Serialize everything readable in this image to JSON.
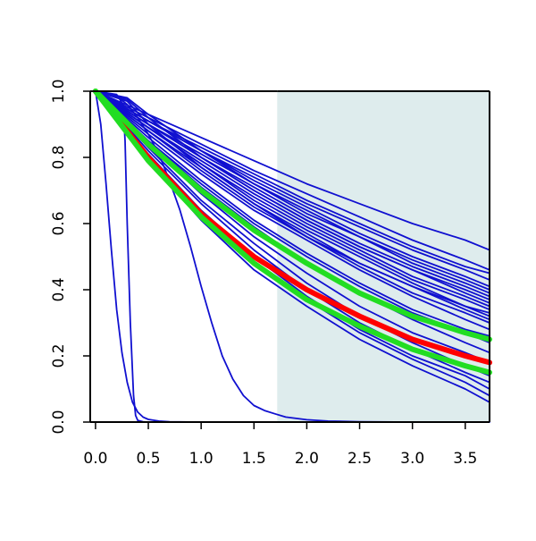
{
  "chart_data": {
    "type": "line",
    "title": "",
    "xlabel": "",
    "ylabel": "",
    "xlim": [
      -0.05,
      3.73
    ],
    "ylim": [
      0,
      1
    ],
    "x_ticks": [
      "0.0",
      "0.5",
      "1.0",
      "1.5",
      "2.0",
      "2.5",
      "3.0",
      "3.5"
    ],
    "y_ticks": [
      "0.0",
      "0.2",
      "0.4",
      "0.6",
      "0.8",
      "1.0"
    ],
    "grid": false,
    "shaded_region": {
      "x_from": 1.72,
      "x_to": 3.73,
      "color": "#deeced"
    },
    "colors": {
      "curves": "#1010d0",
      "highlight_red": "#ff0000",
      "highlight_green": "#22dd22",
      "shade": "#deeced"
    },
    "series": [
      {
        "color": "#1010d0",
        "x": [
          0,
          0.05,
          0.1,
          0.15,
          0.2,
          0.25,
          0.3,
          0.35,
          0.4,
          0.45,
          0.5,
          0.6,
          0.7,
          0.8,
          1.0
        ],
        "y": [
          1.0,
          0.9,
          0.72,
          0.52,
          0.34,
          0.21,
          0.12,
          0.06,
          0.03,
          0.015,
          0.008,
          0.003,
          0.001,
          0.0005,
          0.0
        ]
      },
      {
        "color": "#1010d0",
        "x": [
          0,
          0.2,
          0.26,
          0.28,
          0.3,
          0.33,
          0.36,
          0.38,
          0.4,
          0.45,
          0.5,
          0.7,
          1.0
        ],
        "y": [
          1.0,
          0.99,
          0.96,
          0.85,
          0.6,
          0.3,
          0.08,
          0.02,
          0.005,
          0.001,
          0.0,
          0.0,
          0.0
        ]
      },
      {
        "color": "#1010d0",
        "x": [
          0,
          0.1,
          0.2,
          0.3,
          0.4,
          0.5,
          0.6,
          0.7,
          0.8,
          0.9,
          1.0,
          1.1,
          1.2,
          1.3,
          1.4,
          1.5,
          1.6,
          1.7,
          1.8,
          2.0,
          2.2,
          2.5,
          3.0,
          3.73
        ],
        "y": [
          1.0,
          0.995,
          0.985,
          0.96,
          0.92,
          0.87,
          0.81,
          0.73,
          0.64,
          0.53,
          0.41,
          0.3,
          0.2,
          0.13,
          0.08,
          0.05,
          0.035,
          0.025,
          0.015,
          0.007,
          0.003,
          0.001,
          0.0,
          0.0
        ]
      },
      {
        "color": "#1010d0",
        "x": [
          0,
          0.5,
          1.0,
          1.5,
          2.0,
          2.5,
          3.0,
          3.5,
          3.73
        ],
        "y": [
          1.0,
          0.79,
          0.61,
          0.46,
          0.35,
          0.25,
          0.17,
          0.1,
          0.06
        ]
      },
      {
        "color": "#1010d0",
        "x": [
          0,
          0.5,
          1.0,
          1.5,
          2.0,
          2.5,
          3.0,
          3.5,
          3.73
        ],
        "y": [
          1.0,
          0.8,
          0.63,
          0.48,
          0.37,
          0.27,
          0.19,
          0.12,
          0.08
        ]
      },
      {
        "color": "#1010d0",
        "x": [
          0,
          0.5,
          1.0,
          1.5,
          2.0,
          2.5,
          3.0,
          3.5,
          3.73
        ],
        "y": [
          1.0,
          0.81,
          0.64,
          0.5,
          0.38,
          0.28,
          0.2,
          0.14,
          0.1
        ]
      },
      {
        "color": "#1010d0",
        "x": [
          0,
          0.5,
          1.0,
          1.5,
          2.0,
          2.5,
          3.0,
          3.5,
          3.73
        ],
        "y": [
          1.0,
          0.82,
          0.66,
          0.52,
          0.4,
          0.3,
          0.22,
          0.15,
          0.12
        ]
      },
      {
        "color": "#1010d0",
        "x": [
          0,
          0.5,
          1.0,
          1.5,
          2.0,
          2.5,
          3.0,
          3.5,
          3.73
        ],
        "y": [
          1.0,
          0.83,
          0.67,
          0.54,
          0.42,
          0.32,
          0.24,
          0.17,
          0.14
        ]
      },
      {
        "color": "#1010d0",
        "x": [
          0,
          0.5,
          1.0,
          1.5,
          2.0,
          2.5,
          3.0,
          3.5,
          3.73
        ],
        "y": [
          1.0,
          0.84,
          0.69,
          0.56,
          0.45,
          0.35,
          0.27,
          0.21,
          0.18
        ]
      },
      {
        "color": "#1010d0",
        "x": [
          0,
          0.5,
          1.0,
          1.5,
          2.0,
          2.5,
          3.0,
          3.5,
          3.73
        ],
        "y": [
          1.0,
          0.85,
          0.72,
          0.6,
          0.5,
          0.41,
          0.33,
          0.27,
          0.24
        ]
      },
      {
        "color": "#1010d0",
        "x": [
          0,
          0.5,
          1.0,
          1.5,
          2.0,
          2.5,
          3.0,
          3.5,
          3.73
        ],
        "y": [
          1.0,
          0.87,
          0.75,
          0.64,
          0.55,
          0.46,
          0.38,
          0.31,
          0.28
        ]
      },
      {
        "color": "#1010d0",
        "x": [
          0,
          0.5,
          1.0,
          1.5,
          2.0,
          2.5,
          3.0,
          3.5,
          3.73
        ],
        "y": [
          1.0,
          0.88,
          0.76,
          0.65,
          0.56,
          0.47,
          0.39,
          0.33,
          0.3
        ]
      },
      {
        "color": "#1010d0",
        "x": [
          0,
          0.5,
          1.0,
          1.5,
          2.0,
          2.5,
          3.0,
          3.5,
          3.73
        ],
        "y": [
          1.0,
          0.88,
          0.77,
          0.66,
          0.57,
          0.48,
          0.41,
          0.34,
          0.31
        ]
      },
      {
        "color": "#1010d0",
        "x": [
          0,
          0.5,
          1.0,
          1.5,
          2.0,
          2.5,
          3.0,
          3.5,
          3.73
        ],
        "y": [
          1.0,
          0.89,
          0.78,
          0.67,
          0.58,
          0.5,
          0.42,
          0.35,
          0.32
        ]
      },
      {
        "color": "#1010d0",
        "x": [
          0,
          0.5,
          1.0,
          1.5,
          2.0,
          2.5,
          3.0,
          3.5,
          3.73
        ],
        "y": [
          1.0,
          0.89,
          0.78,
          0.68,
          0.59,
          0.51,
          0.43,
          0.37,
          0.34
        ]
      },
      {
        "color": "#1010d0",
        "x": [
          0,
          0.5,
          1.0,
          1.5,
          2.0,
          2.5,
          3.0,
          3.5,
          3.73
        ],
        "y": [
          1.0,
          0.89,
          0.79,
          0.69,
          0.6,
          0.52,
          0.44,
          0.38,
          0.35
        ]
      },
      {
        "color": "#1010d0",
        "x": [
          0,
          0.5,
          1.0,
          1.5,
          2.0,
          2.5,
          3.0,
          3.5,
          3.73
        ],
        "y": [
          1.0,
          0.9,
          0.8,
          0.7,
          0.61,
          0.53,
          0.46,
          0.39,
          0.36
        ]
      },
      {
        "color": "#1010d0",
        "x": [
          0,
          0.5,
          1.0,
          1.5,
          2.0,
          2.5,
          3.0,
          3.5,
          3.73
        ],
        "y": [
          1.0,
          0.9,
          0.8,
          0.71,
          0.62,
          0.54,
          0.47,
          0.41,
          0.38
        ]
      },
      {
        "color": "#1010d0",
        "x": [
          0,
          0.5,
          1.0,
          1.5,
          2.0,
          2.5,
          3.0,
          3.5,
          3.73
        ],
        "y": [
          1.0,
          0.9,
          0.81,
          0.72,
          0.63,
          0.56,
          0.48,
          0.42,
          0.39
        ]
      },
      {
        "color": "#1010d0",
        "x": [
          0,
          0.5,
          1.0,
          1.5,
          2.0,
          2.5,
          3.0,
          3.5,
          3.73
        ],
        "y": [
          1.0,
          0.91,
          0.82,
          0.73,
          0.65,
          0.57,
          0.5,
          0.44,
          0.41
        ]
      },
      {
        "color": "#1010d0",
        "x": [
          0,
          0.5,
          1.0,
          1.5,
          2.0,
          2.5,
          3.0,
          3.5,
          3.73
        ],
        "y": [
          1.0,
          0.91,
          0.82,
          0.74,
          0.66,
          0.59,
          0.52,
          0.46,
          0.43
        ]
      },
      {
        "color": "#1010d0",
        "x": [
          0,
          0.5,
          1.0,
          1.5,
          2.0,
          2.5,
          3.0,
          3.5,
          3.73
        ],
        "y": [
          1.0,
          0.91,
          0.83,
          0.75,
          0.67,
          0.6,
          0.53,
          0.47,
          0.45
        ]
      },
      {
        "color": "#1010d0",
        "x": [
          0,
          0.5,
          1.0,
          1.5,
          2.0,
          2.5,
          3.0,
          3.5,
          3.73
        ],
        "y": [
          1.0,
          0.92,
          0.84,
          0.76,
          0.69,
          0.62,
          0.55,
          0.49,
          0.46
        ]
      },
      {
        "color": "#1010d0",
        "x": [
          0,
          0.5,
          1.0,
          1.5,
          2.0,
          2.5,
          3.0,
          3.5,
          3.73
        ],
        "y": [
          1.0,
          0.93,
          0.86,
          0.79,
          0.72,
          0.66,
          0.6,
          0.55,
          0.52
        ]
      },
      {
        "color": "#1010d0",
        "x": [
          0,
          0.3,
          0.5,
          1.0,
          1.5,
          2.0,
          2.5,
          3.0,
          3.5,
          3.73
        ],
        "y": [
          1.0,
          0.98,
          0.93,
          0.82,
          0.72,
          0.64,
          0.56,
          0.49,
          0.43,
          0.4
        ]
      },
      {
        "color": "#1010d0",
        "x": [
          0,
          0.3,
          0.5,
          1.0,
          1.5,
          2.0,
          2.5,
          3.0,
          3.5,
          3.73
        ],
        "y": [
          1.0,
          0.975,
          0.92,
          0.8,
          0.7,
          0.61,
          0.53,
          0.46,
          0.4,
          0.37
        ]
      },
      {
        "color": "#1010d0",
        "x": [
          0,
          0.3,
          0.5,
          1.0,
          1.5,
          2.0,
          2.5,
          3.0,
          3.5,
          3.73
        ],
        "y": [
          1.0,
          0.97,
          0.9,
          0.77,
          0.66,
          0.56,
          0.48,
          0.41,
          0.35,
          0.33
        ]
      },
      {
        "color": "#1010d0",
        "x": [
          0,
          0.5,
          1.0,
          1.5,
          2.0,
          2.5,
          3.0,
          3.5,
          3.73
        ],
        "y": [
          1.0,
          0.85,
          0.71,
          0.59,
          0.48,
          0.39,
          0.31,
          0.24,
          0.21
        ]
      },
      {
        "color": "#1010d0",
        "x": [
          0,
          0.5,
          1.0,
          1.5,
          2.0,
          2.5,
          3.0,
          3.5,
          3.73
        ],
        "y": [
          1.0,
          0.86,
          0.73,
          0.61,
          0.51,
          0.42,
          0.34,
          0.28,
          0.26
        ]
      },
      {
        "color": "#ff0000",
        "x": [
          0,
          0.5,
          1.0,
          1.5,
          2.0,
          2.5,
          3.0,
          3.5,
          3.73
        ],
        "y": [
          1.0,
          0.8,
          0.63,
          0.5,
          0.4,
          0.32,
          0.25,
          0.2,
          0.18
        ],
        "highlight": true
      },
      {
        "color": "#22dd22",
        "x": [
          0,
          0.5,
          1.0,
          1.5,
          2.0,
          2.5,
          3.0,
          3.5,
          3.73
        ],
        "y": [
          1.0,
          0.79,
          0.62,
          0.48,
          0.37,
          0.29,
          0.22,
          0.17,
          0.15
        ],
        "highlight": true
      },
      {
        "color": "#22dd22",
        "x": [
          0,
          0.5,
          1.0,
          1.5,
          2.0,
          2.5,
          3.0,
          3.5,
          3.73
        ],
        "y": [
          1.0,
          0.84,
          0.7,
          0.58,
          0.48,
          0.39,
          0.32,
          0.27,
          0.25
        ],
        "highlight": true
      }
    ]
  }
}
